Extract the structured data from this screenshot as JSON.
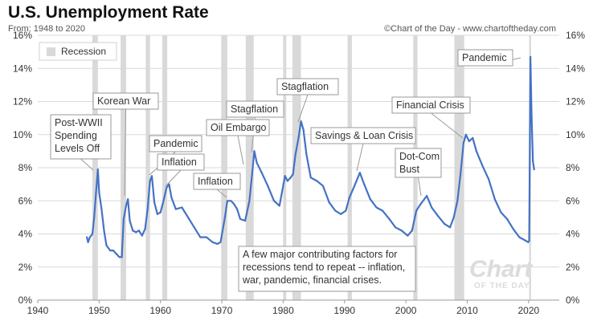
{
  "header": {
    "title": "U.S. Unemployment Rate",
    "subtitle": "From: 1948 to 2020",
    "credit": "©Chart of the Day - www.chartoftheday.com"
  },
  "legend": {
    "label": "Recession",
    "position": "top-left"
  },
  "watermark": {
    "line1": "Chart",
    "line2": "OF THE DAY"
  },
  "chart_data": {
    "type": "line",
    "title": "U.S. Unemployment Rate",
    "xlim": [
      1940,
      2025
    ],
    "ylim": [
      0,
      16
    ],
    "x_ticks": [
      1940,
      1950,
      1960,
      1970,
      1980,
      1990,
      2000,
      2010,
      2020
    ],
    "y_ticks_left": [
      "0%",
      "2%",
      "4%",
      "6%",
      "8%",
      "10%",
      "12%",
      "14%",
      "16%"
    ],
    "y_ticks_right": [
      "0%",
      "2%",
      "4%",
      "6%",
      "8%",
      "10%",
      "12%",
      "14%",
      "16%"
    ],
    "grid": "horizontal",
    "line_color": "#4472c4",
    "recession_color": "#d9d9d9",
    "recessions": [
      [
        1948.9,
        1949.8
      ],
      [
        1953.5,
        1954.4
      ],
      [
        1957.6,
        1958.3
      ],
      [
        1960.3,
        1961.1
      ],
      [
        1969.9,
        1970.9
      ],
      [
        1973.9,
        1975.2
      ],
      [
        1980.0,
        1980.5
      ],
      [
        1981.5,
        1982.9
      ],
      [
        1990.5,
        1991.2
      ],
      [
        2001.2,
        2001.9
      ],
      [
        2007.9,
        2009.5
      ],
      [
        2020.1,
        2020.4
      ]
    ],
    "series": [
      {
        "values": [
          [
            1948.0,
            3.8
          ],
          [
            1948.2,
            3.5
          ],
          [
            1948.5,
            3.8
          ],
          [
            1948.9,
            4.0
          ],
          [
            1949.2,
            5.0
          ],
          [
            1949.5,
            6.5
          ],
          [
            1949.8,
            7.9
          ],
          [
            1950.0,
            6.5
          ],
          [
            1950.4,
            5.5
          ],
          [
            1950.8,
            4.2
          ],
          [
            1951.2,
            3.3
          ],
          [
            1951.8,
            3.0
          ],
          [
            1952.3,
            3.0
          ],
          [
            1952.8,
            2.8
          ],
          [
            1953.3,
            2.6
          ],
          [
            1953.7,
            2.6
          ],
          [
            1954.0,
            4.9
          ],
          [
            1954.4,
            5.7
          ],
          [
            1954.7,
            6.1
          ],
          [
            1955.0,
            4.8
          ],
          [
            1955.5,
            4.2
          ],
          [
            1956.0,
            4.1
          ],
          [
            1956.5,
            4.2
          ],
          [
            1957.0,
            3.9
          ],
          [
            1957.5,
            4.3
          ],
          [
            1957.9,
            5.5
          ],
          [
            1958.3,
            7.2
          ],
          [
            1958.6,
            7.5
          ],
          [
            1959.0,
            5.9
          ],
          [
            1959.5,
            5.2
          ],
          [
            1960.0,
            5.3
          ],
          [
            1960.5,
            6.0
          ],
          [
            1961.0,
            6.8
          ],
          [
            1961.4,
            7.0
          ],
          [
            1961.8,
            6.2
          ],
          [
            1962.5,
            5.5
          ],
          [
            1963.5,
            5.6
          ],
          [
            1964.5,
            5.0
          ],
          [
            1965.5,
            4.4
          ],
          [
            1966.5,
            3.8
          ],
          [
            1967.5,
            3.8
          ],
          [
            1968.5,
            3.5
          ],
          [
            1969.3,
            3.4
          ],
          [
            1969.8,
            3.5
          ],
          [
            1970.5,
            5.0
          ],
          [
            1970.9,
            6.0
          ],
          [
            1971.5,
            6.0
          ],
          [
            1972.0,
            5.8
          ],
          [
            1972.5,
            5.5
          ],
          [
            1973.0,
            4.9
          ],
          [
            1973.8,
            4.8
          ],
          [
            1974.5,
            6.0
          ],
          [
            1974.9,
            7.5
          ],
          [
            1975.3,
            9.0
          ],
          [
            1975.7,
            8.3
          ],
          [
            1976.5,
            7.7
          ],
          [
            1977.5,
            6.9
          ],
          [
            1978.5,
            6.0
          ],
          [
            1979.4,
            5.7
          ],
          [
            1980.3,
            7.5
          ],
          [
            1980.7,
            7.2
          ],
          [
            1981.2,
            7.4
          ],
          [
            1981.6,
            7.6
          ],
          [
            1982.0,
            8.8
          ],
          [
            1982.5,
            9.8
          ],
          [
            1982.9,
            10.8
          ],
          [
            1983.3,
            10.3
          ],
          [
            1983.8,
            8.8
          ],
          [
            1984.5,
            7.4
          ],
          [
            1985.5,
            7.2
          ],
          [
            1986.5,
            6.9
          ],
          [
            1987.5,
            5.9
          ],
          [
            1988.5,
            5.4
          ],
          [
            1989.4,
            5.2
          ],
          [
            1990.2,
            5.4
          ],
          [
            1990.8,
            6.2
          ],
          [
            1991.5,
            6.8
          ],
          [
            1992.5,
            7.7
          ],
          [
            1993.2,
            7.0
          ],
          [
            1994.2,
            6.1
          ],
          [
            1995.2,
            5.6
          ],
          [
            1996.2,
            5.4
          ],
          [
            1997.3,
            4.9
          ],
          [
            1998.3,
            4.4
          ],
          [
            1999.3,
            4.2
          ],
          [
            2000.3,
            3.9
          ],
          [
            2001.0,
            4.2
          ],
          [
            2001.7,
            5.4
          ],
          [
            2002.4,
            5.8
          ],
          [
            2003.4,
            6.3
          ],
          [
            2004.2,
            5.6
          ],
          [
            2005.2,
            5.1
          ],
          [
            2006.3,
            4.6
          ],
          [
            2007.2,
            4.4
          ],
          [
            2007.8,
            5.0
          ],
          [
            2008.4,
            6.0
          ],
          [
            2008.9,
            7.6
          ],
          [
            2009.4,
            9.5
          ],
          [
            2009.8,
            10.0
          ],
          [
            2010.3,
            9.6
          ],
          [
            2010.9,
            9.8
          ],
          [
            2011.5,
            9.0
          ],
          [
            2012.5,
            8.1
          ],
          [
            2013.5,
            7.3
          ],
          [
            2014.5,
            6.1
          ],
          [
            2015.5,
            5.3
          ],
          [
            2016.5,
            4.9
          ],
          [
            2017.5,
            4.3
          ],
          [
            2018.5,
            3.8
          ],
          [
            2019.5,
            3.6
          ],
          [
            2019.95,
            3.5
          ],
          [
            2020.1,
            3.6
          ],
          [
            2020.3,
            14.7
          ],
          [
            2020.5,
            11.1
          ],
          [
            2020.7,
            8.4
          ],
          [
            2020.9,
            7.9
          ]
        ]
      }
    ],
    "annotations": [
      {
        "lines": [
          "Post-WWII",
          "Spending",
          "Levels Off"
        ]
      },
      {
        "lines": [
          "Korean War"
        ]
      },
      {
        "lines": [
          "Pandemic"
        ]
      },
      {
        "lines": [
          "Inflation"
        ]
      },
      {
        "lines": [
          "Inflation"
        ]
      },
      {
        "lines": [
          "Stagflation"
        ]
      },
      {
        "lines": [
          "Oil Embargo"
        ]
      },
      {
        "lines": [
          "Stagflation"
        ]
      },
      {
        "lines": [
          "Savings & Loan Crisis"
        ]
      },
      {
        "lines": [
          "Financial Crisis"
        ]
      },
      {
        "lines": [
          "Dot-Com",
          "Bust"
        ]
      },
      {
        "lines": [
          "Pandemic"
        ]
      },
      {
        "lines": [
          "A few major contributing factors for",
          "recessions tend to repeat -- inflation,",
          "war, pandemic, financial crises."
        ]
      }
    ]
  }
}
